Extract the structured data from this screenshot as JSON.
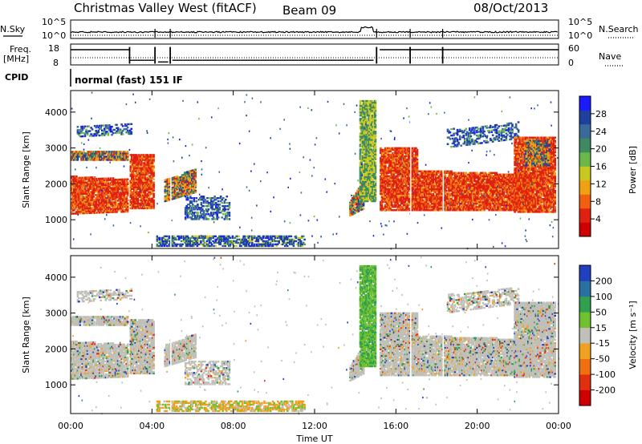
{
  "header": {
    "station": "Christmas Valley West (fitACF)",
    "beam": "Beam 09",
    "date": "08/Oct/2013",
    "cpid_label": "CPID",
    "cpid_value": "normal (fast) 151 IF"
  },
  "top_panels": {
    "nsky_label": "N.Sky",
    "nsky_ticks": [
      "10^5",
      "10^0"
    ],
    "nsearch_label": "N.Search",
    "nsearch_ticks": [
      "10^5",
      "10^0"
    ],
    "freq_label_line1": "Freq.",
    "freq_label_line2": "[MHz]",
    "freq_ticks": [
      "18",
      "8"
    ],
    "nave_label": "Nave",
    "nave_ticks": [
      "60",
      "0"
    ]
  },
  "chart_data": [
    {
      "type": "heatmap",
      "name": "power",
      "ylabel": "Slant Range [km]",
      "ylim": [
        200,
        4600
      ],
      "yticks": [
        "4000",
        "3000",
        "2000",
        "1000"
      ],
      "colorbar_label": "Power [dB]",
      "colorbar_ticks": [
        "28",
        "24",
        "20",
        "16",
        "12",
        "8",
        "4"
      ],
      "colors": [
        "#1a1aff",
        "#2040a0",
        "#3a6a9a",
        "#3f8a60",
        "#6ab84a",
        "#c8c820",
        "#f0a010",
        "#f06010",
        "#e02010",
        "#d00000"
      ]
    },
    {
      "type": "heatmap",
      "name": "velocity",
      "xlabel": "Time UT",
      "ylabel": "Slant Range [km]",
      "ylim": [
        200,
        4600
      ],
      "yticks": [
        "4000",
        "3000",
        "2000",
        "1000"
      ],
      "xticks": [
        "00:00",
        "04:00",
        "08:00",
        "12:00",
        "16:00",
        "20:00",
        "00:00"
      ],
      "colorbar_label": "Velocity [m s⁻¹]",
      "colorbar_ticks": [
        "200",
        "100",
        "50",
        "15",
        "-15",
        "-50",
        "-100",
        "-200"
      ],
      "colors": [
        "#2040c0",
        "#2a70a0",
        "#30a050",
        "#70c030",
        "#c0c0b8",
        "#f0a020",
        "#f07010",
        "#e03010",
        "#d00000"
      ]
    }
  ]
}
